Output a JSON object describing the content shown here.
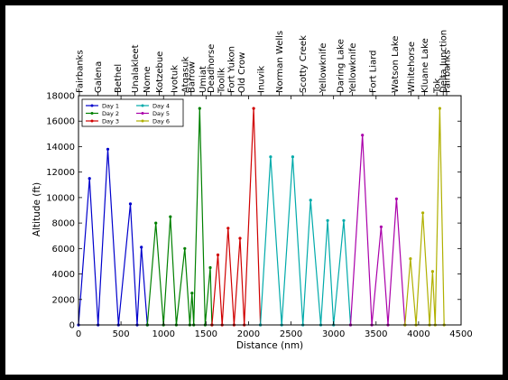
{
  "chart_data": {
    "type": "line",
    "title": "",
    "xlabel": "Distance (nm)",
    "ylabel": "Altitude (ft)",
    "xlim": [
      0,
      4500
    ],
    "ylim": [
      0,
      18000
    ],
    "xticks": [
      0,
      500,
      1000,
      1500,
      2000,
      2500,
      3000,
      3500,
      4000,
      4500
    ],
    "yticks": [
      0,
      2000,
      4000,
      6000,
      8000,
      10000,
      12000,
      14000,
      16000,
      18000
    ],
    "grid": false,
    "legend_position": "top-left",
    "top_axis_places": [
      {
        "x": 10,
        "name": "Fairbanks"
      },
      {
        "x": 230,
        "name": "Galena"
      },
      {
        "x": 460,
        "name": "Bethel"
      },
      {
        "x": 665,
        "name": "Unalakleet"
      },
      {
        "x": 800,
        "name": "Nome"
      },
      {
        "x": 950,
        "name": "Kotzebue"
      },
      {
        "x": 1125,
        "name": "Ivotuk"
      },
      {
        "x": 1250,
        "name": "Atqasuk"
      },
      {
        "x": 1325,
        "name": "Barrow"
      },
      {
        "x": 1460,
        "name": "Umiat"
      },
      {
        "x": 1555,
        "name": "Deadhorse"
      },
      {
        "x": 1675,
        "name": "Toolik"
      },
      {
        "x": 1795,
        "name": "Fort Yukon"
      },
      {
        "x": 1915,
        "name": "Old Crow"
      },
      {
        "x": 2145,
        "name": "Inuvik"
      },
      {
        "x": 2360,
        "name": "Norman Wells"
      },
      {
        "x": 2640,
        "name": "Scotty Creek"
      },
      {
        "x": 2870,
        "name": "Yellowknife"
      },
      {
        "x": 3080,
        "name": "Daring Lake"
      },
      {
        "x": 3220,
        "name": "Yellowknife"
      },
      {
        "x": 3460,
        "name": "Fort Liard"
      },
      {
        "x": 3720,
        "name": "Watson Lake"
      },
      {
        "x": 3910,
        "name": "Whitehorse"
      },
      {
        "x": 4070,
        "name": "Kluane Lake"
      },
      {
        "x": 4215,
        "name": "Tok"
      },
      {
        "x": 4290,
        "name": "Delta Junction"
      },
      {
        "x": 4330,
        "name": "Fairbanks"
      }
    ],
    "series": [
      {
        "name": "Day 1",
        "color": "#0000cc",
        "x": [
          0,
          130,
          230,
          345,
          470,
          610,
          690,
          740,
          810
        ],
        "y": [
          0,
          11500,
          0,
          13800,
          0,
          9500,
          0,
          6100,
          0
        ]
      },
      {
        "name": "Day 2",
        "color": "#008000",
        "x": [
          810,
          910,
          1000,
          1080,
          1150,
          1250,
          1310,
          1335,
          1355,
          1425,
          1490,
          1550,
          1570
        ],
        "y": [
          0,
          8000,
          0,
          8500,
          0,
          6000,
          0,
          2500,
          0,
          17000,
          0,
          4500,
          0
        ]
      },
      {
        "name": "Day 3",
        "color": "#d00000",
        "x": [
          1570,
          1640,
          1690,
          1760,
          1830,
          1900,
          1950,
          2060,
          2140
        ],
        "y": [
          0,
          5500,
          0,
          7600,
          0,
          6800,
          0,
          17000,
          0
        ]
      },
      {
        "name": "Day 4",
        "color": "#00aaaa",
        "x": [
          2140,
          2260,
          2390,
          2520,
          2640,
          2730,
          2850,
          2930,
          3000,
          3120,
          3200
        ],
        "y": [
          0,
          13200,
          0,
          13200,
          0,
          9800,
          0,
          8200,
          0,
          8200,
          0
        ]
      },
      {
        "name": "Day 5",
        "color": "#aa00aa",
        "x": [
          3200,
          3340,
          3450,
          3560,
          3640,
          3740,
          3840
        ],
        "y": [
          0,
          14900,
          0,
          7700,
          0,
          9900,
          0
        ]
      },
      {
        "name": "Day 6",
        "color": "#b0b000",
        "x": [
          3840,
          3905,
          3970,
          4050,
          4130,
          4165,
          4195,
          4250,
          4300
        ],
        "y": [
          0,
          5200,
          0,
          8800,
          0,
          4200,
          0,
          17000,
          0
        ]
      }
    ]
  }
}
